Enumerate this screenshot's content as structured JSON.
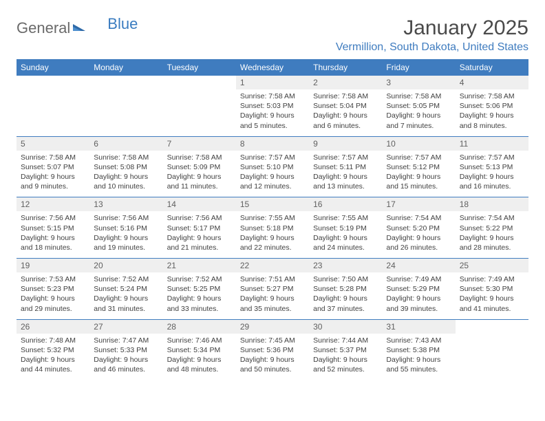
{
  "logo": {
    "part1": "General",
    "part2": "Blue"
  },
  "title": "January 2025",
  "location": "Vermillion, South Dakota, United States",
  "colors": {
    "header_bg": "#3f7cbf",
    "header_text": "#ffffff",
    "daynum_bg": "#efefef",
    "border": "#3f7cbf",
    "body_text": "#404040",
    "location_text": "#3f7cbf"
  },
  "weekdays": [
    "Sunday",
    "Monday",
    "Tuesday",
    "Wednesday",
    "Thursday",
    "Friday",
    "Saturday"
  ],
  "weeks": [
    {
      "nums": [
        "",
        "",
        "",
        "1",
        "2",
        "3",
        "4"
      ],
      "cells": [
        "",
        "",
        "",
        "Sunrise: 7:58 AM\nSunset: 5:03 PM\nDaylight: 9 hours and 5 minutes.",
        "Sunrise: 7:58 AM\nSunset: 5:04 PM\nDaylight: 9 hours and 6 minutes.",
        "Sunrise: 7:58 AM\nSunset: 5:05 PM\nDaylight: 9 hours and 7 minutes.",
        "Sunrise: 7:58 AM\nSunset: 5:06 PM\nDaylight: 9 hours and 8 minutes."
      ]
    },
    {
      "nums": [
        "5",
        "6",
        "7",
        "8",
        "9",
        "10",
        "11"
      ],
      "cells": [
        "Sunrise: 7:58 AM\nSunset: 5:07 PM\nDaylight: 9 hours and 9 minutes.",
        "Sunrise: 7:58 AM\nSunset: 5:08 PM\nDaylight: 9 hours and 10 minutes.",
        "Sunrise: 7:58 AM\nSunset: 5:09 PM\nDaylight: 9 hours and 11 minutes.",
        "Sunrise: 7:57 AM\nSunset: 5:10 PM\nDaylight: 9 hours and 12 minutes.",
        "Sunrise: 7:57 AM\nSunset: 5:11 PM\nDaylight: 9 hours and 13 minutes.",
        "Sunrise: 7:57 AM\nSunset: 5:12 PM\nDaylight: 9 hours and 15 minutes.",
        "Sunrise: 7:57 AM\nSunset: 5:13 PM\nDaylight: 9 hours and 16 minutes."
      ]
    },
    {
      "nums": [
        "12",
        "13",
        "14",
        "15",
        "16",
        "17",
        "18"
      ],
      "cells": [
        "Sunrise: 7:56 AM\nSunset: 5:15 PM\nDaylight: 9 hours and 18 minutes.",
        "Sunrise: 7:56 AM\nSunset: 5:16 PM\nDaylight: 9 hours and 19 minutes.",
        "Sunrise: 7:56 AM\nSunset: 5:17 PM\nDaylight: 9 hours and 21 minutes.",
        "Sunrise: 7:55 AM\nSunset: 5:18 PM\nDaylight: 9 hours and 22 minutes.",
        "Sunrise: 7:55 AM\nSunset: 5:19 PM\nDaylight: 9 hours and 24 minutes.",
        "Sunrise: 7:54 AM\nSunset: 5:20 PM\nDaylight: 9 hours and 26 minutes.",
        "Sunrise: 7:54 AM\nSunset: 5:22 PM\nDaylight: 9 hours and 28 minutes."
      ]
    },
    {
      "nums": [
        "19",
        "20",
        "21",
        "22",
        "23",
        "24",
        "25"
      ],
      "cells": [
        "Sunrise: 7:53 AM\nSunset: 5:23 PM\nDaylight: 9 hours and 29 minutes.",
        "Sunrise: 7:52 AM\nSunset: 5:24 PM\nDaylight: 9 hours and 31 minutes.",
        "Sunrise: 7:52 AM\nSunset: 5:25 PM\nDaylight: 9 hours and 33 minutes.",
        "Sunrise: 7:51 AM\nSunset: 5:27 PM\nDaylight: 9 hours and 35 minutes.",
        "Sunrise: 7:50 AM\nSunset: 5:28 PM\nDaylight: 9 hours and 37 minutes.",
        "Sunrise: 7:49 AM\nSunset: 5:29 PM\nDaylight: 9 hours and 39 minutes.",
        "Sunrise: 7:49 AM\nSunset: 5:30 PM\nDaylight: 9 hours and 41 minutes."
      ]
    },
    {
      "nums": [
        "26",
        "27",
        "28",
        "29",
        "30",
        "31",
        ""
      ],
      "cells": [
        "Sunrise: 7:48 AM\nSunset: 5:32 PM\nDaylight: 9 hours and 44 minutes.",
        "Sunrise: 7:47 AM\nSunset: 5:33 PM\nDaylight: 9 hours and 46 minutes.",
        "Sunrise: 7:46 AM\nSunset: 5:34 PM\nDaylight: 9 hours and 48 minutes.",
        "Sunrise: 7:45 AM\nSunset: 5:36 PM\nDaylight: 9 hours and 50 minutes.",
        "Sunrise: 7:44 AM\nSunset: 5:37 PM\nDaylight: 9 hours and 52 minutes.",
        "Sunrise: 7:43 AM\nSunset: 5:38 PM\nDaylight: 9 hours and 55 minutes.",
        ""
      ]
    }
  ]
}
